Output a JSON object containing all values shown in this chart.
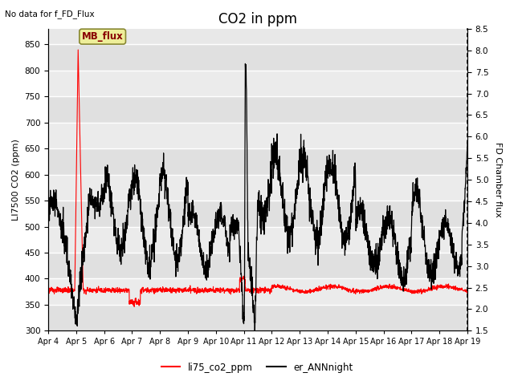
{
  "title": "CO2 in ppm",
  "top_left_text": "No data for f_FD_Flux",
  "ylabel_left": "LI7500 CO2 (ppm)",
  "ylabel_right": "FD Chamber flux",
  "ylim_left": [
    300,
    880
  ],
  "ylim_right": [
    1.5,
    8.5
  ],
  "yticks_left": [
    300,
    350,
    400,
    450,
    500,
    550,
    600,
    650,
    700,
    750,
    800,
    850
  ],
  "yticks_right": [
    1.5,
    2.0,
    2.5,
    3.0,
    3.5,
    4.0,
    4.5,
    5.0,
    5.5,
    6.0,
    6.5,
    7.0,
    7.5,
    8.0,
    8.5
  ],
  "xtick_labels": [
    "Apr 4",
    "Apr 5",
    "Apr 6",
    "Apr 7",
    "Apr 8",
    "Apr 9",
    "Apr 10",
    "Apr 11",
    "Apr 12",
    "Apr 13",
    "Apr 14",
    "Apr 15",
    "Apr 16",
    "Apr 17",
    "Apr 18",
    "Apr 19"
  ],
  "legend_labels": [
    "li75_co2_ppm",
    "er_ANNnight"
  ],
  "legend_colors": [
    "red",
    "black"
  ],
  "mb_flux_label": "MB_flux",
  "mb_flux_box_color": "#eeee99",
  "mb_flux_text_color": "#880000",
  "plot_bg_color": "#e8e8e8",
  "plot_bg_light": "#f0f0f0",
  "grid_color": "white",
  "red_line_color": "red",
  "black_line_color": "black",
  "title_fontsize": 12,
  "axis_label_fontsize": 8,
  "tick_fontsize": 7.5
}
